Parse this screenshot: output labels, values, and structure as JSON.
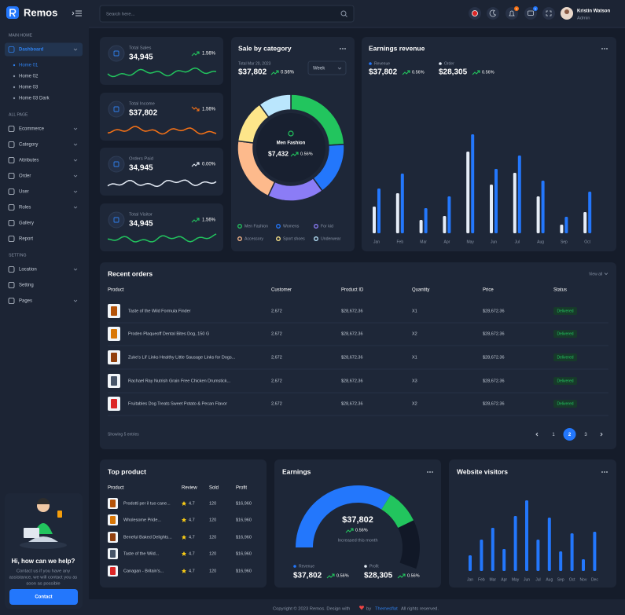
{
  "brand": "Remos",
  "search_placeholder": "Search here...",
  "header": {
    "badges": [
      {
        "text": "1",
        "color": "#f97316"
      },
      {
        "text": "1",
        "color": "#2377fc"
      }
    ]
  },
  "user": {
    "name": "Kristin Watson",
    "role": "Admin"
  },
  "sidebar": {
    "sections": [
      {
        "title": "MAIN HOME",
        "items": [
          {
            "label": "Dashboard",
            "active": true,
            "submenu": true,
            "children": [
              "Home 01",
              "Home 02",
              "Home 03",
              "Home 03 Dark"
            ],
            "active_child": 0
          }
        ]
      },
      {
        "title": "ALL PAGE",
        "items": [
          {
            "label": "Ecommerce",
            "submenu": true
          },
          {
            "label": "Category",
            "submenu": true
          },
          {
            "label": "Attributes",
            "submenu": true
          },
          {
            "label": "Order",
            "submenu": true
          },
          {
            "label": "User",
            "submenu": true
          },
          {
            "label": "Roles",
            "submenu": true
          },
          {
            "label": "Gallery",
            "submenu": false
          },
          {
            "label": "Report",
            "submenu": false
          }
        ]
      },
      {
        "title": "SETTING",
        "items": [
          {
            "label": "Location",
            "submenu": true
          },
          {
            "label": "Setting",
            "submenu": false
          },
          {
            "label": "Pages",
            "submenu": true
          }
        ]
      }
    ]
  },
  "help": {
    "title": "Hi, how can we help?",
    "lines": [
      "Contact us if you have any",
      "assistance, we will contact you as",
      "soon as possible"
    ],
    "button": "Contact"
  },
  "stats": [
    {
      "label": "Total Sales",
      "value": "34,945",
      "change": "1.56%",
      "trend": "up",
      "color": "#22c55e"
    },
    {
      "label": "Total Income",
      "value": "$37,802",
      "change": "1.56%",
      "trend": "down",
      "color": "#f97316"
    },
    {
      "label": "Orders Paid",
      "value": "34,945",
      "change": "0.00%",
      "trend": "up",
      "color": "#e6edf7"
    },
    {
      "label": "Total Visitor",
      "value": "34,945",
      "change": "1.56%",
      "trend": "up",
      "color": "#22c55e"
    }
  ],
  "sale_by_category": {
    "title": "Sale by category",
    "date": "Total Mar 20, 2023",
    "total": "$37,802",
    "change": "0.56%",
    "period": "Week",
    "center": {
      "label": "Men Fashion",
      "value": "$7,432",
      "change": "0.56%"
    },
    "chart_data": {
      "type": "pie",
      "categories": [
        "Men Fashion",
        "Womens",
        "For kid",
        "Accessory",
        "Sport shoes",
        "Underwear"
      ],
      "values": [
        24,
        16,
        17,
        20,
        13,
        10
      ],
      "colors": [
        "#22c55e",
        "#2377fc",
        "#8b7cf6",
        "#fdba8c",
        "#fde68a",
        "#bae6fd"
      ]
    }
  },
  "earnings_revenue": {
    "title": "Earnings revenue",
    "chart_data": {
      "type": "bar",
      "categories": [
        "Jan",
        "Feb",
        "Mar",
        "Apr",
        "May",
        "Jun",
        "Jul",
        "Aug",
        "Sep",
        "Oct"
      ],
      "ylim": [
        0,
        187
      ],
      "series": [
        {
          "name": "Revenue",
          "color": "#2377fc",
          "total": "$37,802",
          "change": "0.56%",
          "values": [
            57,
            76,
            32,
            47,
            126,
            82,
            99,
            67,
            21,
            53
          ]
        },
        {
          "name": "Order",
          "color": "#e6edf7",
          "total": "$28,305",
          "change": "0.56%",
          "values": [
            34,
            51,
            17,
            22,
            104,
            62,
            77,
            47,
            11,
            27
          ]
        }
      ]
    }
  },
  "recent_orders": {
    "title": "Recent orders",
    "view_all": "View all",
    "columns": [
      "Product",
      "Customer",
      "Product ID",
      "Quantity",
      "Price",
      "Status"
    ],
    "rows": [
      [
        "Taste of the Wild Formula Finder",
        "2,672",
        "$28,672.36",
        "X1",
        "$28,672.36",
        "Delivered"
      ],
      [
        "Proden Plaqueoff Dental Bites Dog, 150 G",
        "2,672",
        "$28,672.36",
        "X2",
        "$28,672.36",
        "Delivered"
      ],
      [
        "Zuke's Lil' Links Healthy Little Sausage Links for Dogs...",
        "2,672",
        "$28,672.36",
        "X1",
        "$28,672.36",
        "Delivered"
      ],
      [
        "Rachael Ray Nutrish Grain Free Chicken Drumstick...",
        "2,672",
        "$28,672.36",
        "X3",
        "$28,672.36",
        "Delivered"
      ],
      [
        "Fruitables Dog Treats Sweet Potato & Pecan Flavor",
        "2,672",
        "$28,672.36",
        "X2",
        "$28,672.36",
        "Delivered"
      ]
    ],
    "showing": "Showing 5 entries",
    "pages": [
      "1",
      "2",
      "3"
    ],
    "active_page": 1
  },
  "top_product": {
    "title": "Top product",
    "columns": [
      "Product",
      "Review",
      "Sold",
      "Profit"
    ],
    "rows": [
      [
        "Prodotti per il tuo cane...",
        "4.7",
        "120",
        "$16,960"
      ],
      [
        "Wholesome Pride...",
        "4.7",
        "120",
        "$16,960"
      ],
      [
        "Beneful Baked Delights...",
        "4.7",
        "120",
        "$16,960"
      ],
      [
        "Taste of the Wild...",
        "4.7",
        "120",
        "$16,960"
      ],
      [
        "Canagan - Britain's...",
        "4.7",
        "120",
        "$16,960"
      ]
    ]
  },
  "earnings": {
    "title": "Earnings",
    "total": "$37,802",
    "change": "0.56%",
    "note": "Increased this month",
    "chart_data": {
      "type": "gauge",
      "max": 100,
      "values": [
        61,
        16
      ],
      "colors": [
        "#2377fc",
        "#22c55e"
      ],
      "track_color": "#111827"
    },
    "legend": [
      {
        "name": "Revenue",
        "color": "#2377fc",
        "value": "$37,802",
        "change": "0.56%"
      },
      {
        "name": "Profit",
        "color": "#e6edf7",
        "value": "$28,305",
        "change": "0.56%"
      }
    ]
  },
  "website_visitors": {
    "title": "Website visitors",
    "chart_data": {
      "type": "bar",
      "categories": [
        "Jan",
        "Feb",
        "Mar",
        "Apr",
        "May",
        "Jun",
        "Jul",
        "Aug",
        "Sep",
        "Oct",
        "Nov",
        "Dec"
      ],
      "ylim": [
        0,
        100
      ],
      "color": "#2377fc",
      "values": [
        20,
        40,
        55,
        28,
        70,
        90,
        40,
        68,
        25,
        48,
        15,
        50
      ]
    }
  },
  "footer": {
    "text": "Copyright © 2023 Remos. Design with",
    "by": "by",
    "author": "Themesflat",
    "rights": "All rights reserved."
  }
}
